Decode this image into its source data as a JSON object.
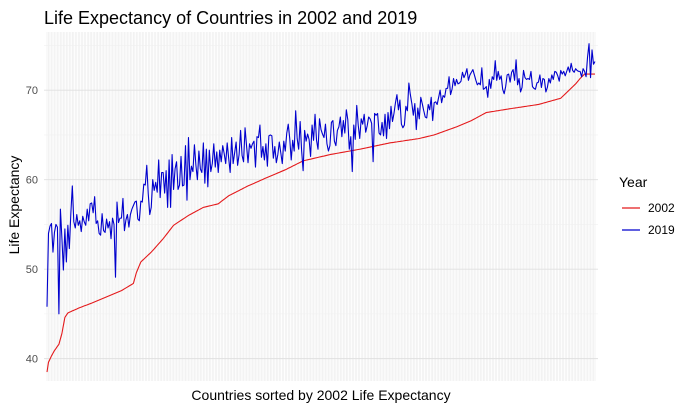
{
  "chart_data": {
    "type": "line",
    "title": "Life Expectancy of Countries in 2002 and 2019",
    "xlabel": "Countries sorted by 2002 Life Expectancy",
    "ylabel": "Life Expectancy",
    "ylim": [
      37.5,
      76.5
    ],
    "yticks": [
      40,
      50,
      60,
      70
    ],
    "grid": true,
    "legend": {
      "title": "Year",
      "position": "right"
    },
    "series": [
      {
        "name": "2002",
        "color": "#e41a1c",
        "values": []
      },
      {
        "name": "2019",
        "color": "#0000cd",
        "values": []
      }
    ],
    "series_2002_anchors": [
      [
        0,
        38.5
      ],
      [
        1,
        39.6
      ],
      [
        3,
        40.3
      ],
      [
        5,
        40.9
      ],
      [
        8,
        41.6
      ],
      [
        10,
        42.8
      ],
      [
        12,
        44.6
      ],
      [
        14,
        45.1
      ],
      [
        22,
        45.7
      ],
      [
        30,
        46.2
      ],
      [
        40,
        46.9
      ],
      [
        50,
        47.6
      ],
      [
        58,
        48.4
      ],
      [
        60,
        49.6
      ],
      [
        63,
        50.8
      ],
      [
        70,
        51.9
      ],
      [
        78,
        53.4
      ],
      [
        85,
        54.9
      ],
      [
        95,
        56.0
      ],
      [
        105,
        56.9
      ],
      [
        115,
        57.3
      ],
      [
        122,
        58.2
      ],
      [
        135,
        59.3
      ],
      [
        150,
        60.4
      ],
      [
        160,
        61.1
      ],
      [
        172,
        62.1
      ],
      [
        190,
        62.8
      ],
      [
        210,
        63.4
      ],
      [
        230,
        64.1
      ],
      [
        250,
        64.6
      ],
      [
        260,
        65.0
      ],
      [
        275,
        65.9
      ],
      [
        285,
        66.6
      ],
      [
        295,
        67.5
      ],
      [
        310,
        67.9
      ],
      [
        330,
        68.4
      ],
      [
        345,
        69.1
      ],
      [
        350,
        69.9
      ],
      [
        355,
        70.7
      ],
      [
        358,
        71.3
      ],
      [
        361,
        71.8
      ]
    ],
    "series_2019_values": [
      45.8,
      54.0,
      54.8,
      55.1,
      51.9,
      54.1,
      55.0,
      54.7,
      45.0,
      56.7,
      53.5,
      49.9,
      54.5,
      50.8,
      54.9,
      52.3,
      56.2,
      59.3,
      55.3,
      54.6,
      56.1,
      54.9,
      55.4,
      54.2,
      55.9,
      55.3,
      54.9,
      56.7,
      55.4,
      57.3,
      57.4,
      56.3,
      58.1,
      55.1,
      55.4,
      54.0,
      53.8,
      56.2,
      54.3,
      54.1,
      55.6,
      54.6,
      55.3,
      53.4,
      55.7,
      55.0,
      49.1,
      57.5,
      55.2,
      55.7,
      55.7,
      57.9,
      54.3,
      55.5,
      56.1,
      54.7,
      56.1,
      56.7,
      57.1,
      57.5,
      57.6,
      55.6,
      55.4,
      57.6,
      57.5,
      59.5,
      59.4,
      61.6,
      58.4,
      56.1,
      56.9,
      60.0,
      58.8,
      59.7,
      58.6,
      62.2,
      58.0,
      60.8,
      60.8,
      58.5,
      61.0,
      56.9,
      62.2,
      56.9,
      62.8,
      58.9,
      61.2,
      62.0,
      58.9,
      59.4,
      62.6,
      59.3,
      59.4,
      63.8,
      57.7,
      64.7,
      60.0,
      61.5,
      60.9,
      63.9,
      61.6,
      60.0,
      63.2,
      61.2,
      60.8,
      64.1,
      59.6,
      63.4,
      59.2,
      63.3,
      60.9,
      61.8,
      64.0,
      61.4,
      63.1,
      60.8,
      63.3,
      62.0,
      63.8,
      62.9,
      61.8,
      64.1,
      62.4,
      60.8,
      64.7,
      61.8,
      63.0,
      64.2,
      61.6,
      62.8,
      65.5,
      62.7,
      62.0,
      65.8,
      63.8,
      61.9,
      64.0,
      63.5,
      64.0,
      64.3,
      61.4,
      64.8,
      64.7,
      66.1,
      62.5,
      63.7,
      62.2,
      64.0,
      61.5,
      64.9,
      65.0,
      64.9,
      62.4,
      63.7,
      61.9,
      62.8,
      64.2,
      63.0,
      61.8,
      64.3,
      63.2,
      65.2,
      66.2,
      64.6,
      62.2,
      64.4,
      63.2,
      67.7,
      64.6,
      63.4,
      66.5,
      63.2,
      61.0,
      65.5,
      64.3,
      65.1,
      64.5,
      62.6,
      66.1,
      64.4,
      67.3,
      64.4,
      63.4,
      66.8,
      65.6,
      65.1,
      64.7,
      66.2,
      64.0,
      63.2,
      63.8,
      66.4,
      66.6,
      64.3,
      63.8,
      65.5,
      65.9,
      67.0,
      64.8,
      66.6,
      65.2,
      67.8,
      66.7,
      63.4,
      64.8,
      60.9,
      66.1,
      64.5,
      68.3,
      66.1,
      64.6,
      66.8,
      66.2,
      67.3,
      65.3,
      66.0,
      67.0,
      66.8,
      66.3,
      62.0,
      67.4,
      67.2,
      67.4,
      65.2,
      65.0,
      66.4,
      64.9,
      67.3,
      64.6,
      67.5,
      65.7,
      68.2,
      66.5,
      67.4,
      68.6,
      69.5,
      67.8,
      68.9,
      66.2,
      65.8,
      66.1,
      68.2,
      67.7,
      70.8,
      69.5,
      68.5,
      67.2,
      68.5,
      65.6,
      68.0,
      66.8,
      69.2,
      68.5,
      67.7,
      67.0,
      66.9,
      68.4,
      67.8,
      69.2,
      66.6,
      68.6,
      68.7,
      68.4,
      69.2,
      70.0,
      68.6,
      69.4,
      69.2,
      70.2,
      70.2,
      71.5,
      69.5,
      70.1,
      71.3,
      70.5,
      71.2,
      70.7,
      70.8,
      71.0,
      72.0,
      71.4,
      71.8,
      72.4,
      71.1,
      71.7,
      72.0,
      72.3,
      71.7,
      71.1,
      70.6,
      70.8,
      70.6,
      72.5,
      70.1,
      70.2,
      70.4,
      69.2,
      71.2,
      70.2,
      71.5,
      71.2,
      73.3,
      71.1,
      72.1,
      71.2,
      71.6,
      70.1,
      69.6,
      70.4,
      71.7,
      71.8,
      70.9,
      72.0,
      72.3,
      71.1,
      73.4,
      70.6,
      71.3,
      69.8,
      70.3,
      72.2,
      71.4,
      71.2,
      71.3,
      71.2,
      72.1,
      70.4,
      70.2,
      70.1,
      70.8,
      70.9,
      71.7,
      70.3,
      71.3,
      71.2,
      69.8,
      70.3,
      71.3,
      70.8,
      71.7,
      71.2,
      72.1,
      72.0,
      71.6,
      71.0,
      72.2,
      71.8,
      72.1,
      71.6,
      72.1,
      72.6,
      72.0,
      73.0,
      72.2,
      72.0,
      72.4,
      72.2,
      72.1,
      72.1,
      71.5,
      72.4,
      72.1,
      71.5,
      73.7,
      75.2,
      71.4,
      74.5,
      72.9,
      73.2
    ]
  }
}
